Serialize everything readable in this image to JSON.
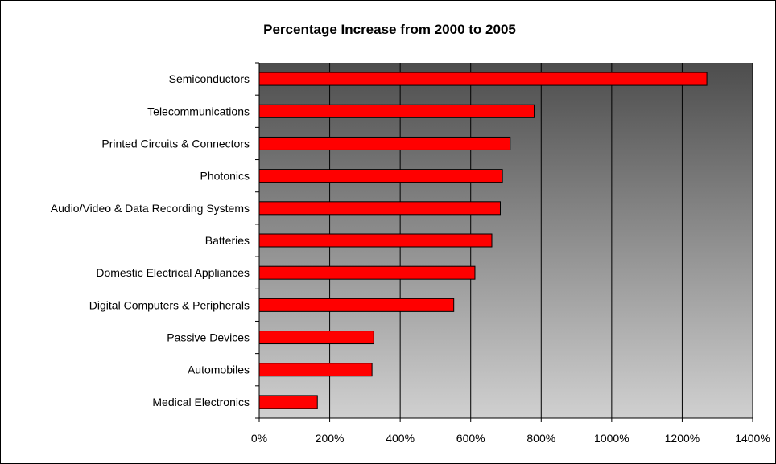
{
  "chart_data": {
    "type": "bar",
    "orientation": "horizontal",
    "title": "Percentage Increase from 2000 to 2005",
    "xlabel": "",
    "ylabel": "",
    "categories": [
      "Semiconductors",
      "Telecommunications",
      "Printed Circuits & Connectors",
      "Photonics",
      "Audio/Video & Data Recording Systems",
      "Batteries",
      "Domestic Electrical Appliances",
      "Digital Computers & Peripherals",
      "Passive Devices",
      "Automobiles",
      "Medical Electronics"
    ],
    "values": [
      1270,
      780,
      712,
      690,
      684,
      660,
      612,
      552,
      325,
      320,
      165
    ],
    "xlim": [
      0,
      1400
    ],
    "ticks": [
      0,
      200,
      400,
      600,
      800,
      1000,
      1200,
      1400
    ],
    "tick_labels": [
      "0%",
      "200%",
      "400%",
      "600%",
      "800%",
      "1000%",
      "1200%",
      "1400%"
    ],
    "grid": true,
    "legend": "none",
    "colors": {
      "bar_fill": "#ff0000",
      "bar_stroke": "#000000",
      "plot_gradient_top": "#4d4d4d",
      "plot_gradient_bottom": "#d0d0d0",
      "gridline": "#000000"
    }
  }
}
